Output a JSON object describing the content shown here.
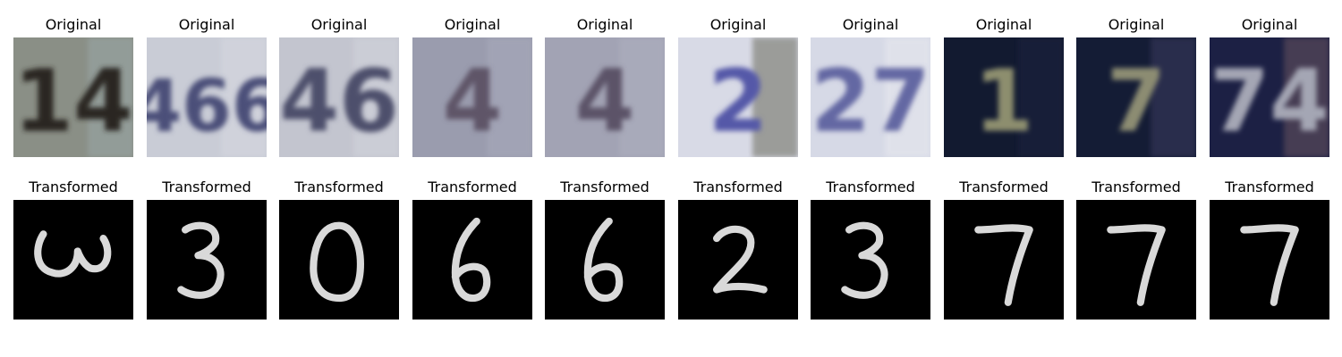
{
  "figure": {
    "rows": [
      {
        "row_label": "Original",
        "kind": "svhn-photo",
        "cells": [
          {
            "title": "Original",
            "digits": "14",
            "bg": "#8a8f86",
            "ink": "#2a2620",
            "accent": "#9aa7a8"
          },
          {
            "title": "Original",
            "digits": "466",
            "bg": "#c9ccd6",
            "ink": "#4b5079",
            "accent": "#d6d8e0"
          },
          {
            "title": "Original",
            "digits": "46",
            "bg": "#c3c5cf",
            "ink": "#4d4f6c",
            "accent": "#d2d4dc"
          },
          {
            "title": "Original",
            "digits": "4",
            "bg": "#9a9cae",
            "ink": "#5e5468",
            "accent": "#a8aabb"
          },
          {
            "title": "Original",
            "digits": "4",
            "bg": "#a2a3b4",
            "ink": "#5b5267",
            "accent": "#aeb0bf"
          },
          {
            "title": "Original",
            "digits": "2",
            "bg": "#d8dae6",
            "ink": "#5559a8",
            "accent": "#6b6a5c"
          },
          {
            "title": "Original",
            "digits": "27",
            "bg": "#d6d9e6",
            "ink": "#6367a3",
            "accent": "#e8e9ef"
          },
          {
            "title": "Original",
            "digits": "1",
            "bg": "#121a30",
            "ink": "#8d8e6e",
            "accent": "#1b2440"
          },
          {
            "title": "Original",
            "digits": "7",
            "bg": "#141c35",
            "ink": "#8c8c72",
            "accent": "#3a3a5e"
          },
          {
            "title": "Original",
            "digits": "74",
            "bg": "#1c2044",
            "ink": "#a4a6b4",
            "accent": "#6a5460"
          }
        ]
      },
      {
        "row_label": "Transformed",
        "kind": "mnist-style",
        "cells": [
          {
            "title": "Transformed",
            "digit": "3",
            "rotated": true
          },
          {
            "title": "Transformed",
            "digit": "3"
          },
          {
            "title": "Transformed",
            "digit": "0"
          },
          {
            "title": "Transformed",
            "digit": "6"
          },
          {
            "title": "Transformed",
            "digit": "6"
          },
          {
            "title": "Transformed",
            "digit": "2"
          },
          {
            "title": "Transformed",
            "digit": "3"
          },
          {
            "title": "Transformed",
            "digit": "7"
          },
          {
            "title": "Transformed",
            "digit": "7"
          },
          {
            "title": "Transformed",
            "digit": "7"
          }
        ]
      }
    ],
    "colors": {
      "page_bg": "#ffffff",
      "mnist_bg": "#000000",
      "mnist_ink": "#d9d9d9"
    }
  }
}
